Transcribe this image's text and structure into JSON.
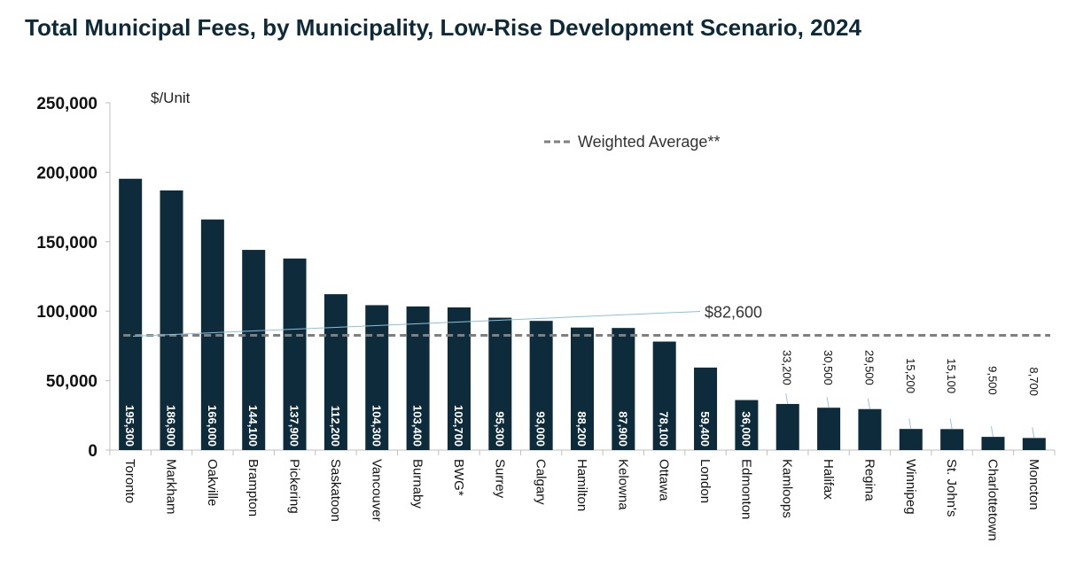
{
  "chart_data": {
    "type": "bar",
    "title": "Total Municipal Fees, by Municipality, Low-Rise Development Scenario, 2024",
    "ylabel": "$/Unit",
    "xlabel": "",
    "ylim": [
      0,
      250000
    ],
    "yticks": [
      "0",
      "50,000",
      "100,000",
      "150,000",
      "200,000",
      "250,000"
    ],
    "ytick_values": [
      0,
      50000,
      100000,
      150000,
      200000,
      250000
    ],
    "grid": false,
    "categories": [
      "Toronto",
      "Markham",
      "Oakville",
      "Brampton",
      "Pickering",
      "Saskatoon",
      "Vancouver",
      "Burnaby",
      "BWG*",
      "Surrey",
      "Calgary",
      "Hamilton",
      "Kelowna",
      "Ottawa",
      "London",
      "Edmonton",
      "Kamloops",
      "Halifax",
      "Regina",
      "Winnipeg",
      "St. John's",
      "Charlottetown",
      "Moncton"
    ],
    "values": [
      195300,
      186900,
      166000,
      144100,
      137900,
      112200,
      104300,
      103400,
      102700,
      95300,
      93000,
      88200,
      87900,
      78100,
      59400,
      36000,
      33200,
      30500,
      29500,
      15200,
      15100,
      9500,
      8700
    ],
    "data_labels": [
      "195,300",
      "186,900",
      "166,000",
      "144,100",
      "137,900",
      "112,200",
      "104,300",
      "103,400",
      "102,700",
      "95,300",
      "93,000",
      "88,200",
      "87,900",
      "78,100",
      "59,400",
      "36,000",
      "33,200",
      "30,500",
      "29,500",
      "15,200",
      "15,100",
      "9,500",
      "8,700"
    ],
    "bar_color": "#0d2b3a",
    "reference_line": {
      "name": "Weighted Average**",
      "value": 82600,
      "label": "$82,600",
      "color": "#7f7f7f",
      "style": "dashed"
    },
    "legend_position": "top-right"
  }
}
